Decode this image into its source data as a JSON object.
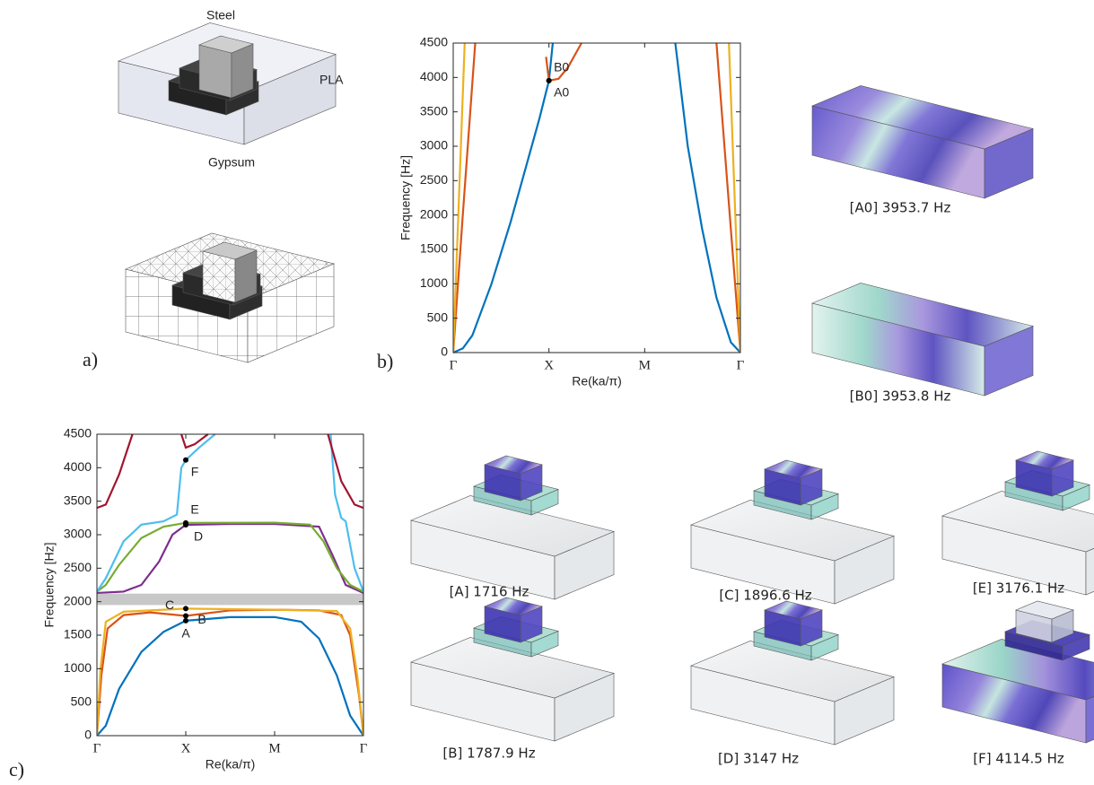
{
  "panel_labels": [
    "a)",
    "b)",
    "c)"
  ],
  "materials": [
    "Steel",
    "PLA",
    "Gypsum"
  ],
  "mode_captions": {
    "b": [
      "[A0] 3953.7 Hz",
      "[B0] 3953.8 Hz"
    ],
    "c": [
      "[A] 1716 Hz",
      "[C] 1896.6 Hz",
      "[E] 3176.1 Hz",
      "[B] 1787.9 Hz",
      "[D] 3147 Hz",
      "[F] 4114.5 Hz"
    ]
  },
  "chart_data": [
    {
      "type": "line",
      "x_label": "Re(ka/π)",
      "y_label": "Frequency [Hz]",
      "xlim": [
        0,
        3
      ],
      "xticks": [
        {
          "value": 0,
          "label": "Γ"
        },
        {
          "value": 1,
          "label": "X"
        },
        {
          "value": 2,
          "label": "M"
        },
        {
          "value": 3,
          "label": "Γ"
        }
      ],
      "ylim": [
        0,
        4500
      ],
      "yticks": [
        0,
        500,
        1000,
        1500,
        2000,
        2500,
        3000,
        3500,
        4000,
        4500
      ],
      "series": [
        {
          "color": "#0072bd",
          "x": [
            0,
            0.1,
            0.2,
            0.4,
            0.6,
            0.8,
            0.9,
            1,
            1.04,
            null,
            2.32,
            2.45,
            2.6,
            2.75,
            2.9,
            3
          ],
          "values": [
            0,
            60,
            250,
            1000,
            1900,
            2900,
            3400,
            3953.7,
            4500,
            null,
            4500,
            3000,
            1800,
            800,
            150,
            0
          ]
        },
        {
          "color": "#d95319",
          "x": [
            0,
            0.1,
            0.23,
            null,
            0.97,
            1,
            1.1,
            1.2,
            1.34,
            null,
            2.75,
            2.9,
            3
          ],
          "values": [
            0,
            2000,
            4500,
            null,
            4300,
            3953.8,
            3980,
            4150,
            4500,
            null,
            4500,
            1800,
            0
          ]
        },
        {
          "color": "#edb120",
          "x": [
            0,
            0.12,
            null,
            2.88,
            3
          ],
          "values": [
            0,
            4500,
            null,
            4500,
            0
          ]
        }
      ],
      "points": [
        {
          "label": "A0",
          "x": 1,
          "y": 3953.7
        },
        {
          "label": "B0",
          "x": 1,
          "y": 3953.8
        }
      ]
    },
    {
      "type": "line",
      "x_label": "Re(ka/π)",
      "y_label": "Frequency [Hz]",
      "xlim": [
        0,
        3
      ],
      "xticks": [
        {
          "value": 0,
          "label": "Γ"
        },
        {
          "value": 1,
          "label": "X"
        },
        {
          "value": 2,
          "label": "M"
        },
        {
          "value": 3,
          "label": "Γ"
        }
      ],
      "ylim": [
        0,
        4500
      ],
      "yticks": [
        0,
        500,
        1000,
        1500,
        2000,
        2500,
        3000,
        3500,
        4000,
        4500
      ],
      "gap": [
        1950,
        2120
      ],
      "gap_color": "#c8c8c8",
      "series": [
        {
          "color": "#0072bd",
          "x": [
            0,
            0.1,
            0.25,
            0.5,
            0.75,
            1,
            1.5,
            2,
            2.3,
            2.5,
            2.7,
            2.85,
            3
          ],
          "values": [
            0,
            150,
            700,
            1250,
            1550,
            1716,
            1770,
            1770,
            1700,
            1450,
            900,
            300,
            0
          ]
        },
        {
          "color": "#d95319",
          "x": [
            0,
            0.05,
            0.12,
            0.3,
            0.6,
            1,
            1.5,
            2,
            2.5,
            2.75,
            2.85,
            2.95,
            3
          ],
          "values": [
            0,
            900,
            1600,
            1800,
            1840,
            1787.9,
            1870,
            1880,
            1870,
            1800,
            1500,
            600,
            0
          ]
        },
        {
          "color": "#edb120",
          "x": [
            0,
            0.04,
            0.1,
            0.3,
            1,
            2,
            2.7,
            2.85,
            2.93,
            3
          ],
          "values": [
            0,
            1000,
            1700,
            1850,
            1896.6,
            1880,
            1860,
            1600,
            900,
            0
          ]
        },
        {
          "color": "#7e2f8e",
          "x": [
            0,
            0.3,
            0.5,
            0.7,
            0.85,
            1,
            1.5,
            2,
            2.5,
            2.65,
            2.8,
            3
          ],
          "values": [
            2130,
            2150,
            2250,
            2600,
            3000,
            3147,
            3160,
            3160,
            3120,
            2700,
            2250,
            2130
          ]
        },
        {
          "color": "#77ac30",
          "x": [
            0,
            0.1,
            0.25,
            0.5,
            0.75,
            1,
            2,
            2.4,
            2.55,
            2.7,
            2.85,
            3
          ],
          "values": [
            2150,
            2250,
            2550,
            2950,
            3120,
            3176.1,
            3180,
            3150,
            2900,
            2500,
            2250,
            2150
          ]
        },
        {
          "color": "#4dbeee",
          "x": [
            0,
            0.1,
            0.3,
            0.5,
            0.75,
            0.9,
            0.95,
            1,
            1.15,
            1.33,
            null,
            2.63,
            2.68,
            2.75,
            2.8,
            2.9,
            3
          ],
          "values": [
            2150,
            2350,
            2900,
            3150,
            3200,
            3300,
            4000,
            4114.5,
            4300,
            4500,
            null,
            4500,
            3600,
            3250,
            3200,
            2500,
            2150
          ]
        },
        {
          "color": "#a2142f",
          "x": [
            0,
            0.1,
            0.25,
            0.4,
            null,
            0.95,
            1,
            1.1,
            1.25,
            null,
            2.6,
            2.75,
            2.9,
            3
          ],
          "values": [
            3400,
            3450,
            3900,
            4500,
            null,
            4500,
            4300,
            4350,
            4500,
            null,
            4500,
            3800,
            3450,
            3400
          ]
        }
      ],
      "points": [
        {
          "label": "A",
          "x": 1,
          "y": 1716
        },
        {
          "label": "B",
          "x": 1,
          "y": 1787.9
        },
        {
          "label": "C",
          "x": 1,
          "y": 1896.6
        },
        {
          "label": "D",
          "x": 1,
          "y": 3147
        },
        {
          "label": "E",
          "x": 1,
          "y": 3176.1
        },
        {
          "label": "F",
          "x": 1,
          "y": 4114.5
        }
      ]
    }
  ]
}
